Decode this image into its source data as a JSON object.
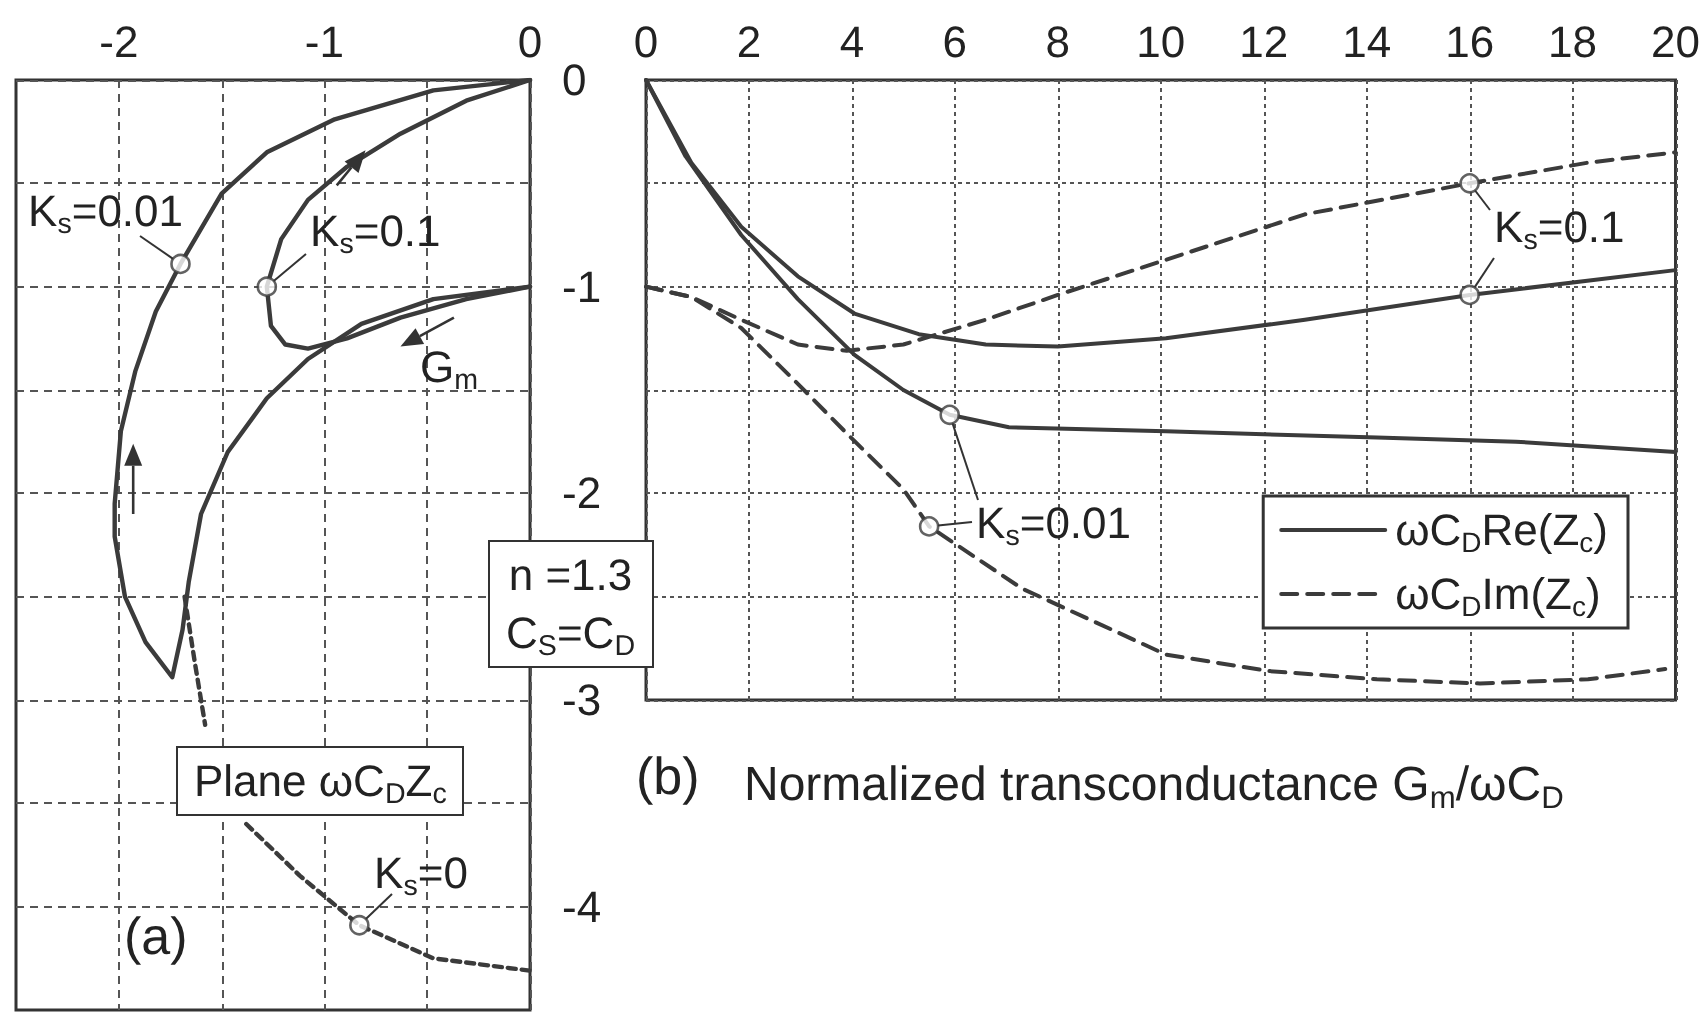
{
  "chart_data": [
    {
      "type": "line",
      "title": "(a)",
      "annotations": [
        "K$_{s}$=0.01",
        "K$_{s}$=0.1",
        "G$_{m}$",
        "Plane ωC$_{D}$Z$_{c}$",
        "n =1.3\nC$_{S}$=C$_{D}$",
        "K$_{s}$=0"
      ],
      "xlim": [
        -2.5,
        0
      ],
      "xticks": [
        -2,
        {
          "value": -1.5,
          "label": null
        },
        -1,
        {
          "value": -0.5,
          "label": null
        },
        0
      ],
      "ylim": [
        -4.5,
        0
      ],
      "yticks": [
        0,
        {
          "value": -0.5,
          "label": null
        },
        -1,
        {
          "value": -1.5,
          "label": null
        },
        -2,
        {
          "value": -2.5,
          "label": null
        },
        -3,
        {
          "value": -3.5,
          "label": null
        },
        -4
      ],
      "grid": true,
      "marker": "none",
      "series": [
        {
          "color": "#3b3b3b",
          "line_style": "solid",
          "x": [
            0,
            -0.47,
            -0.82,
            -1.08,
            -1.28,
            -1.47,
            -1.6,
            -1.66,
            -1.69,
            -1.74,
            -1.87,
            -1.97,
            -2.02,
            -2.02,
            -1.99,
            -1.92,
            -1.82,
            -1.7,
            -1.5,
            -1.28,
            -0.95,
            -0.47,
            0
          ],
          "values": [
            -1,
            -1.06,
            -1.18,
            -1.35,
            -1.54,
            -1.8,
            -2.1,
            -2.43,
            -2.66,
            -2.89,
            -2.72,
            -2.5,
            -2.21,
            -2.05,
            -1.7,
            -1.41,
            -1.12,
            -0.89,
            -0.55,
            -0.35,
            -0.19,
            -0.05,
            0
          ]
        },
        {
          "color": "#3b3b3b",
          "line_style": "solid",
          "x": [
            0,
            -0.31,
            -0.63,
            -0.89,
            -1.08,
            -1.19,
            -1.26,
            -1.28,
            -1.21,
            -1.08,
            -0.89,
            -0.63,
            -0.31,
            0
          ],
          "values": [
            -1,
            -1.06,
            -1.15,
            -1.25,
            -1.3,
            -1.28,
            -1.19,
            -1,
            -0.77,
            -0.58,
            -0.42,
            -0.26,
            -0.1,
            0
          ]
        },
        {
          "color": "#3b3b3b",
          "line_style": "dashed",
          "x": [
            -1.68,
            -1.63,
            -1.58,
            null,
            -1.38,
            -1.12,
            -0.83,
            -0.47,
            0
          ],
          "values": [
            -2.5,
            -2.82,
            -3.12,
            null,
            -3.6,
            -3.85,
            -4.09,
            -4.25,
            -4.31
          ]
        },
        {
          "type": "scatter",
          "color": "#3b3b3b",
          "marker": "circle",
          "x": [
            -1.7,
            -1.28,
            -0.83
          ],
          "values": [
            -0.89,
            -1,
            -4.09
          ]
        }
      ]
    },
    {
      "type": "line",
      "title": "(b)",
      "xlabel": "Normalized transconductance G$_{m}$/ωC$_{D}$",
      "annotations": [
        "K$_{s}$=0.1",
        "K$_{s}$=0.01"
      ],
      "xlim": [
        0,
        20
      ],
      "xticks": [
        0,
        2,
        4,
        6,
        8,
        10,
        12,
        14,
        16,
        18,
        20
      ],
      "ylim": [
        -3,
        0
      ],
      "yticks": [
        0,
        {
          "value": -0.5,
          "label": null
        },
        -1,
        {
          "value": -1.5,
          "label": null
        },
        -2,
        {
          "value": -2.5,
          "label": null
        },
        -3
      ],
      "tick_labels": "x",
      "grid": true,
      "legend": "bottom right",
      "marker": "none",
      "series": [
        {
          "name": "ωC$_{D}$Re(Z$_{c}$)",
          "color": "#3b3b3b",
          "line_style": "solid",
          "x": [
            0,
            0.88,
            1.85,
            2.95,
            4.05,
            5.3,
            6.6,
            8,
            10.1,
            12.8,
            16,
            20
          ],
          "values": [
            0,
            -0.4,
            -0.71,
            -0.95,
            -1.13,
            -1.23,
            -1.28,
            -1.29,
            -1.25,
            -1.16,
            -1.04,
            -0.92
          ]
        },
        {
          "color": "#3b3b3b",
          "line_style": "solid",
          "x": [
            0,
            0.77,
            1.85,
            2.95,
            4.05,
            5,
            5.9,
            7.05,
            10.1,
            14.2,
            16.9,
            20
          ],
          "values": [
            0,
            -0.37,
            -0.75,
            -1.06,
            -1.33,
            -1.5,
            -1.62,
            -1.68,
            -1.7,
            -1.73,
            -1.75,
            -1.8
          ]
        },
        {
          "name": "ωC$_{D}$Im(Z$_{c}$)",
          "color": "#3b3b3b",
          "line_style": "dashed",
          "x": [
            0,
            0.88,
            1.85,
            2.95,
            3.9,
            5,
            6.6,
            8,
            10.1,
            12.8,
            16,
            18.3,
            20
          ],
          "values": [
            -1,
            -1.05,
            -1.16,
            -1.28,
            -1.31,
            -1.28,
            -1.16,
            -1.04,
            -0.87,
            -0.65,
            -0.5,
            -0.4,
            -0.35
          ]
        },
        {
          "color": "#3b3b3b",
          "line_style": "dashed",
          "x": [
            0,
            0.88,
            1.85,
            2.95,
            3.9,
            5,
            5.5,
            7.3,
            10.1,
            12.1,
            14.2,
            16.2,
            18.3,
            19.8
          ],
          "values": [
            -1,
            -1.05,
            -1.2,
            -1.47,
            -1.71,
            -1.98,
            -2.16,
            -2.46,
            -2.78,
            -2.86,
            -2.9,
            -2.92,
            -2.9,
            -2.85
          ]
        },
        {
          "type": "scatter",
          "color": "#3b3b3b",
          "marker": "circle",
          "x": [
            16,
            16,
            5.9,
            5.5
          ],
          "values": [
            -0.5,
            -1.04,
            -1.62,
            -2.16
          ]
        }
      ]
    }
  ]
}
